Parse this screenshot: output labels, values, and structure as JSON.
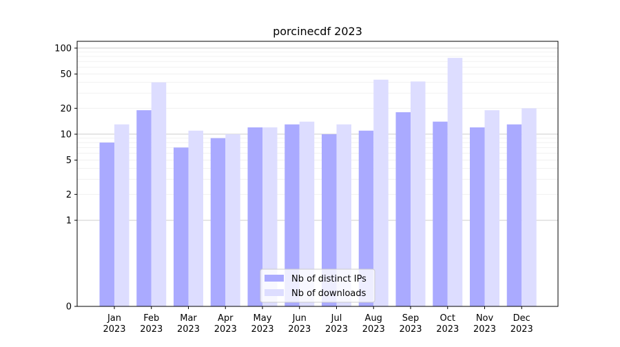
{
  "chart_data": {
    "type": "bar",
    "title": "porcinecdf 2023",
    "xlabel": "",
    "ylabel": "",
    "yscale": "symlog",
    "ylim": [
      0,
      120
    ],
    "yticks": [
      0,
      1,
      2,
      5,
      10,
      20,
      50,
      100
    ],
    "grid": true,
    "legend_position": "bottom-center",
    "categories": [
      "Jan\n2023",
      "Feb\n2023",
      "Mar\n2023",
      "Apr\n2023",
      "May\n2023",
      "Jun\n2023",
      "Jul\n2023",
      "Aug\n2023",
      "Sep\n2023",
      "Oct\n2023",
      "Nov\n2023",
      "Dec\n2023"
    ],
    "series": [
      {
        "name": "Nb of distinct IPs",
        "color": "#aaaaff",
        "values": [
          8,
          19,
          7,
          9,
          12,
          13,
          10,
          11,
          18,
          14,
          12,
          13
        ]
      },
      {
        "name": "Nb of downloads",
        "color": "#ddddff",
        "values": [
          13,
          40,
          11,
          10,
          12,
          14,
          13,
          43,
          41,
          77,
          19,
          20
        ]
      }
    ]
  }
}
